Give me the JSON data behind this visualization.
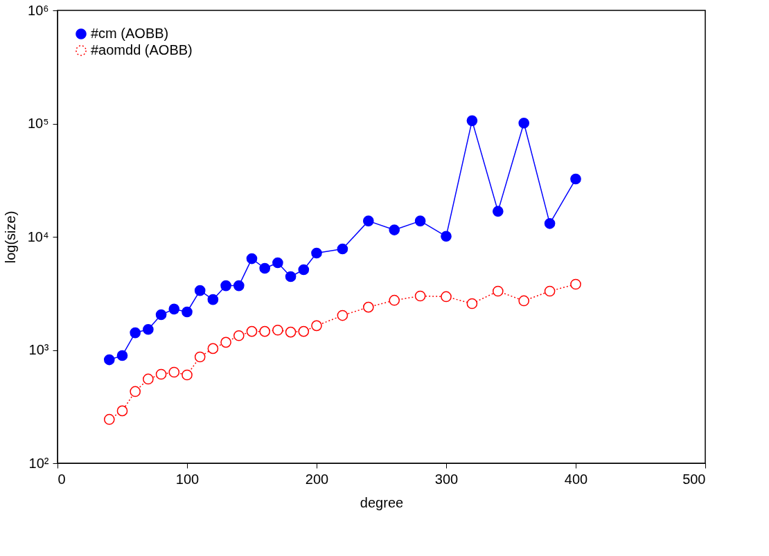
{
  "chart_data": {
    "type": "line",
    "xlabel": "degree",
    "ylabel": "log(size)",
    "log": "y",
    "legend": "top left",
    "marker": "circle",
    "grid": false,
    "x": [
      40,
      50,
      60,
      70,
      80,
      90,
      100,
      110,
      120,
      130,
      140,
      150,
      160,
      170,
      180,
      190,
      200,
      220,
      240,
      260,
      280,
      300,
      320,
      340,
      360,
      380,
      400
    ],
    "series": [
      {
        "name": "#cm (AOBB)",
        "color": "#0000ff",
        "line_style": "solid",
        "values": [
          820,
          894,
          1420,
          1520,
          2050,
          2300,
          2170,
          3350,
          2790,
          3700,
          3700,
          6410,
          5270,
          5900,
          4450,
          5120,
          7180,
          7810,
          13800,
          11500,
          13800,
          10100,
          106000,
          16800,
          101000,
          13100,
          32400
        ]
      },
      {
        "name": "#aomdd (AOBB)",
        "color": "#ff0000",
        "line_style": "dotted",
        "values": [
          244,
          290,
          430,
          554,
          611,
          637,
          602,
          869,
          1030,
          1170,
          1340,
          1460,
          1460,
          1500,
          1440,
          1460,
          1640,
          2020,
          2390,
          2750,
          3000,
          2960,
          2570,
          3310,
          2720,
          3310,
          3810
        ]
      }
    ],
    "xlim": [
      0,
      500
    ],
    "xticks": [
      0,
      100,
      200,
      300,
      400,
      500
    ],
    "ylim": [
      100,
      1000000
    ],
    "yticks": [
      {
        "value": 100,
        "label": "10²"
      },
      {
        "value": 1000,
        "label": "10³"
      },
      {
        "value": 10000,
        "label": "10⁴"
      },
      {
        "value": 100000,
        "label": "10⁵"
      },
      {
        "value": 1000000,
        "label": "10⁶"
      }
    ]
  }
}
